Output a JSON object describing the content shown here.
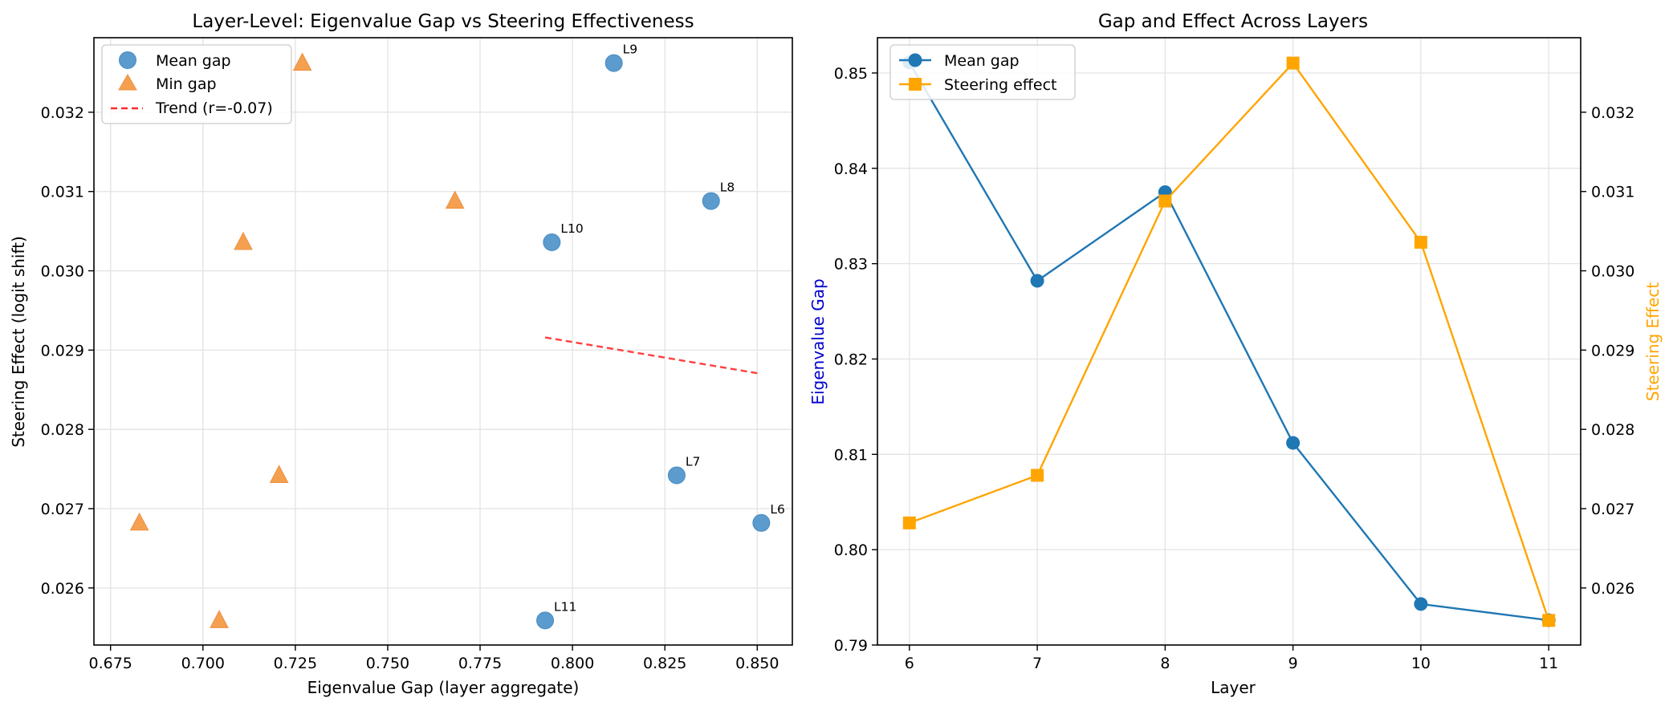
{
  "chart_data": [
    {
      "type": "scatter",
      "title": "Layer-Level: Eigenvalue Gap vs Steering Effectiveness",
      "xlabel": "Eigenvalue Gap (layer aggregate)",
      "ylabel": "Steering Effect (logit shift)",
      "xlim": [
        0.6705,
        0.8595
      ],
      "ylim": [
        0.02528,
        0.03294
      ],
      "x_ticks": [
        "0.675",
        "0.700",
        "0.725",
        "0.750",
        "0.775",
        "0.800",
        "0.825",
        "0.850"
      ],
      "x_tick_values": [
        0.675,
        0.7,
        0.725,
        0.75,
        0.775,
        0.8,
        0.825,
        0.85
      ],
      "y_ticks": [
        "0.026",
        "0.027",
        "0.028",
        "0.029",
        "0.030",
        "0.031",
        "0.032"
      ],
      "y_tick_values": [
        0.026,
        0.027,
        0.028,
        0.029,
        0.03,
        0.031,
        0.032
      ],
      "grid": true,
      "legend_position": "upper left",
      "series": [
        {
          "name": "Mean gap",
          "marker": "circle",
          "color": "#5b9bcd",
          "x": [
            0.8511,
            0.8282,
            0.8375,
            0.8112,
            0.7944,
            0.7926
          ],
          "y": [
            0.02682,
            0.02742,
            0.03088,
            0.03262,
            0.03036,
            0.02559
          ],
          "labels": [
            "L6",
            "L7",
            "L8",
            "L9",
            "L10",
            "L11"
          ]
        },
        {
          "name": "Min gap",
          "marker": "triangle",
          "color": "#f4a050",
          "x": [
            0.6828,
            0.7206,
            0.7682,
            0.7269,
            0.7109,
            0.7044
          ],
          "y": [
            0.02682,
            0.02742,
            0.03088,
            0.03262,
            0.03036,
            0.02559
          ]
        },
        {
          "name": "Trend (r=-0.07)",
          "marker": "dashed-line",
          "color": "#ff2a2a",
          "x": [
            0.7926,
            0.8511
          ],
          "y": [
            0.02916,
            0.0287
          ]
        }
      ]
    },
    {
      "type": "line",
      "title": "Gap and Effect Across Layers",
      "xlabel": "Layer",
      "ylabel_left": "Eigenvalue Gap",
      "ylabel_right": "Steering Effect",
      "categories": [
        6,
        7,
        8,
        9,
        10,
        11
      ],
      "x_ticks": [
        "6",
        "7",
        "8",
        "9",
        "10",
        "11"
      ],
      "xlim": [
        5.75,
        11.25
      ],
      "ylim_left": [
        0.79,
        0.8537
      ],
      "ylim_right": [
        0.02528,
        0.03294
      ],
      "y_ticks_left": [
        "0.79",
        "0.80",
        "0.81",
        "0.82",
        "0.83",
        "0.84",
        "0.85"
      ],
      "y_tick_values_left": [
        0.79,
        0.8,
        0.81,
        0.82,
        0.83,
        0.84,
        0.85
      ],
      "y_ticks_right": [
        "0.026",
        "0.027",
        "0.028",
        "0.029",
        "0.030",
        "0.031",
        "0.032"
      ],
      "y_tick_values_right": [
        0.026,
        0.027,
        0.028,
        0.029,
        0.03,
        0.031,
        0.032
      ],
      "grid": true,
      "legend_position": "upper left",
      "series": [
        {
          "name": "Mean gap",
          "axis": "left",
          "marker": "circle",
          "color": "#1f77b4",
          "values": [
            0.8511,
            0.8282,
            0.8375,
            0.8112,
            0.7943,
            0.7926
          ]
        },
        {
          "name": "Steering effect",
          "axis": "right",
          "marker": "square",
          "color": "#ffa500",
          "values": [
            0.02682,
            0.02742,
            0.03088,
            0.03262,
            0.03036,
            0.02559
          ]
        }
      ],
      "ylabel_left_color": "#0000cc",
      "ylabel_right_color": "#ffa500"
    }
  ]
}
